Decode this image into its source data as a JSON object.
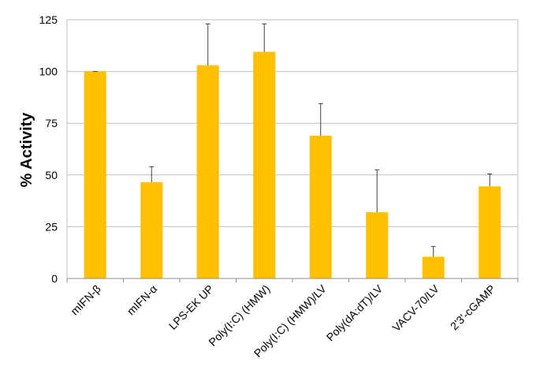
{
  "chart_data": {
    "type": "bar",
    "title": "",
    "xlabel": "",
    "ylabel": "% Activity",
    "ylim": [
      0,
      125
    ],
    "yticks": [
      0,
      25,
      50,
      75,
      100,
      125
    ],
    "grid": "horizontal",
    "legend": "none",
    "bar_color": "#FFC000",
    "error_color": "#404040",
    "categories": [
      "mIFN-β",
      "mIFN-α",
      "LPS-EK UP",
      "Poly(I:C) (HMW)",
      "Poly(I:C) (HMW)/LV",
      "Poly(dA:dT)/LV",
      "VACV-70/LV",
      "2'3'-cGAMP"
    ],
    "values": [
      100,
      46.5,
      103,
      109.5,
      69,
      32,
      10.5,
      44.5
    ],
    "error_plus": [
      0,
      7.5,
      20,
      13.5,
      15.5,
      20.5,
      5,
      6
    ]
  }
}
